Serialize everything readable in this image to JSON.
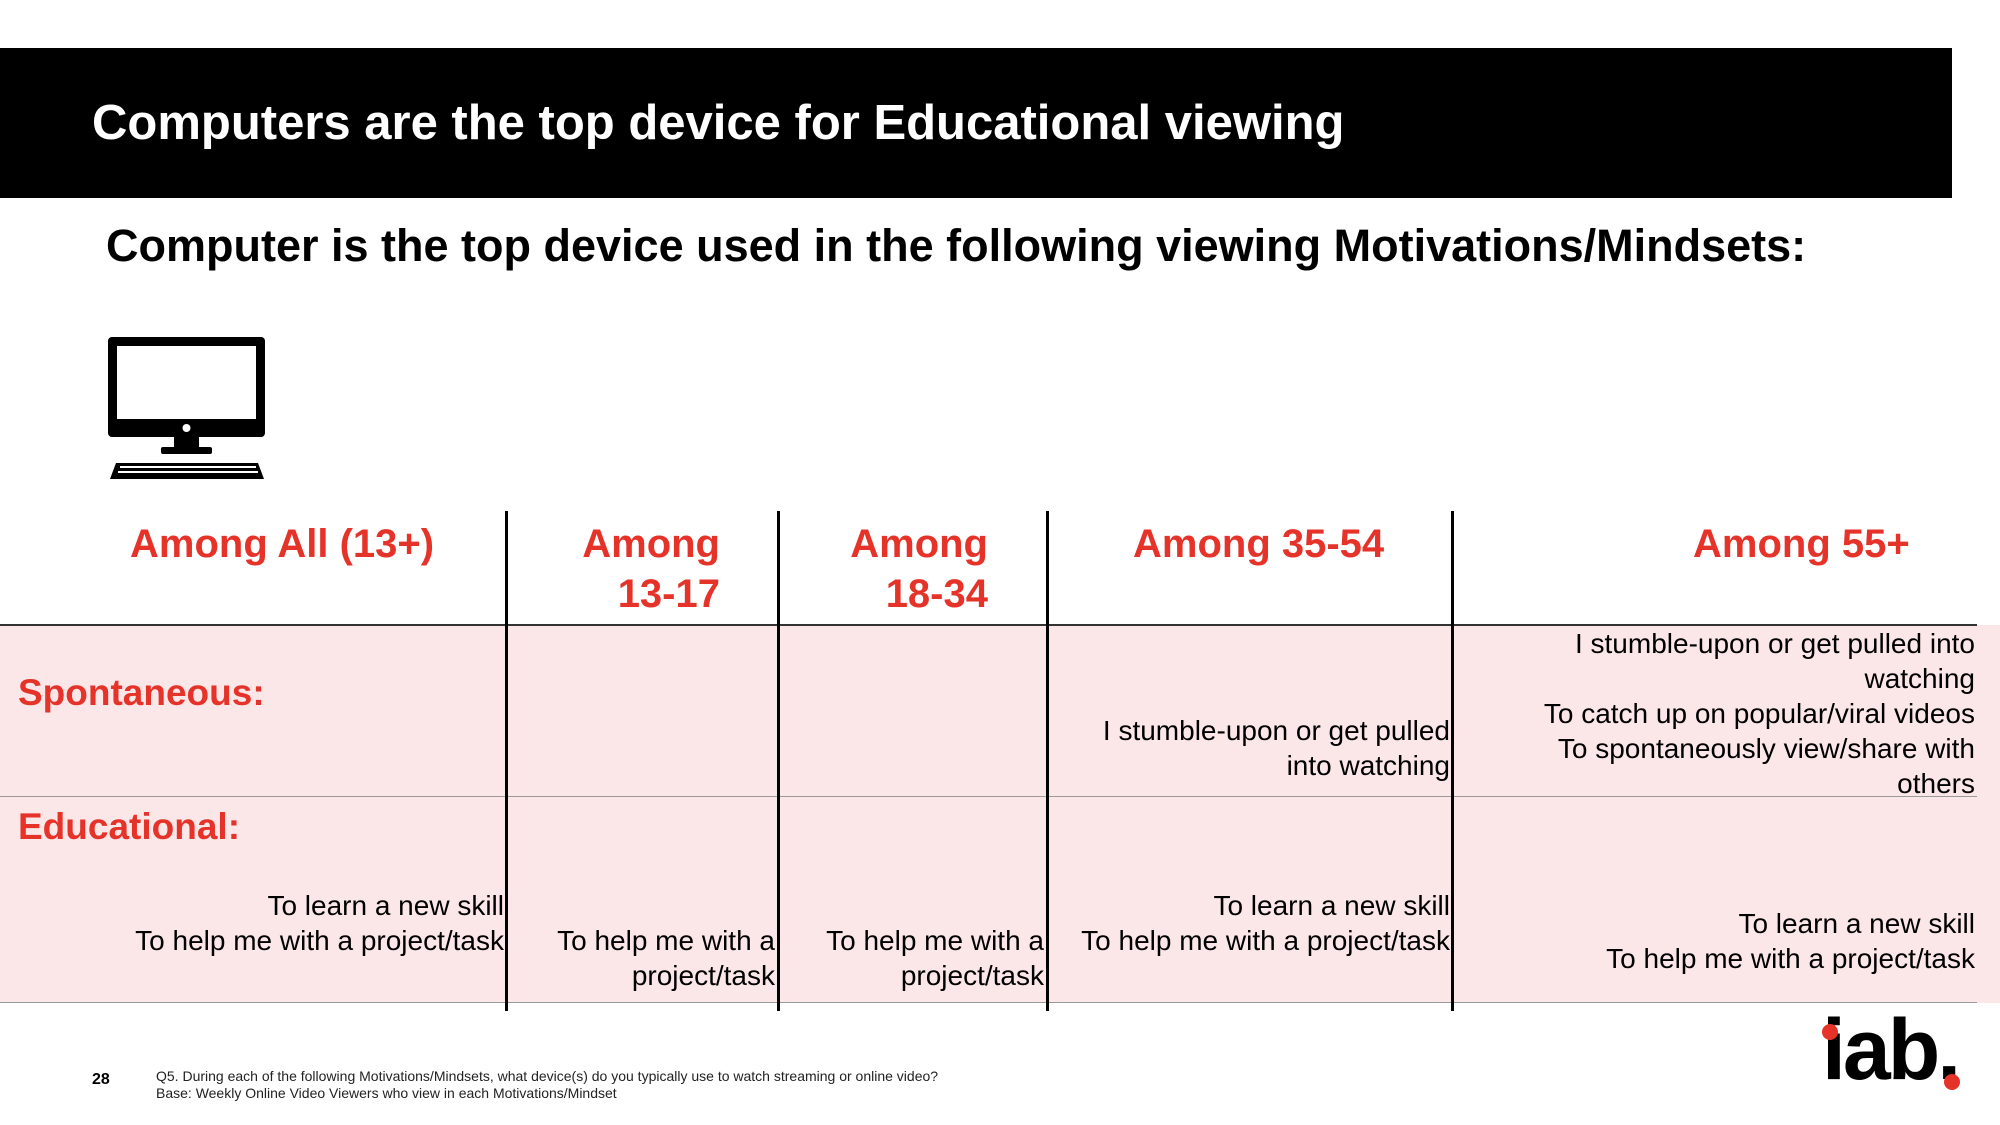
{
  "title": "Computers are the top device for Educational viewing",
  "subtitle": "Computer is the top device used in the following viewing Motivations/Mindsets:",
  "icon": "desktop-computer-icon",
  "accent_color": "#e5332a",
  "table": {
    "columns": [
      {
        "label": "Among All (13+)"
      },
      {
        "label_line1": "Among",
        "label_line2": "13-17"
      },
      {
        "label_line1": "Among",
        "label_line2": "18-34"
      },
      {
        "label": "Among 35-54"
      },
      {
        "label": "Among 55+"
      }
    ],
    "rows": [
      {
        "label": "Spontaneous:",
        "cells": [
          [],
          [],
          [],
          [
            "I stumble-upon or get pulled",
            "into watching"
          ],
          [
            "I stumble-upon or get pulled into",
            "watching",
            "To catch up on popular/viral videos",
            "To spontaneously view/share with",
            "others"
          ]
        ]
      },
      {
        "label": "Educational:",
        "cells": [
          [
            "To learn a new skill",
            "To help me with a project/task"
          ],
          [
            "To help me with a",
            "project/task"
          ],
          [
            "To help me with a",
            "project/task"
          ],
          [
            "To learn a new skill",
            "To help me with a project/task"
          ],
          [
            "To learn a new skill",
            "To help me with a project/task"
          ]
        ]
      }
    ]
  },
  "page_number": "28",
  "footnote": {
    "line1": "Q5. During each of the following Motivations/Mindsets, what device(s) do you typically use to watch streaming or online video?",
    "line2": "Base: Weekly Online Video Viewers who view in each Motivations/Mindset"
  },
  "logo": "iab."
}
